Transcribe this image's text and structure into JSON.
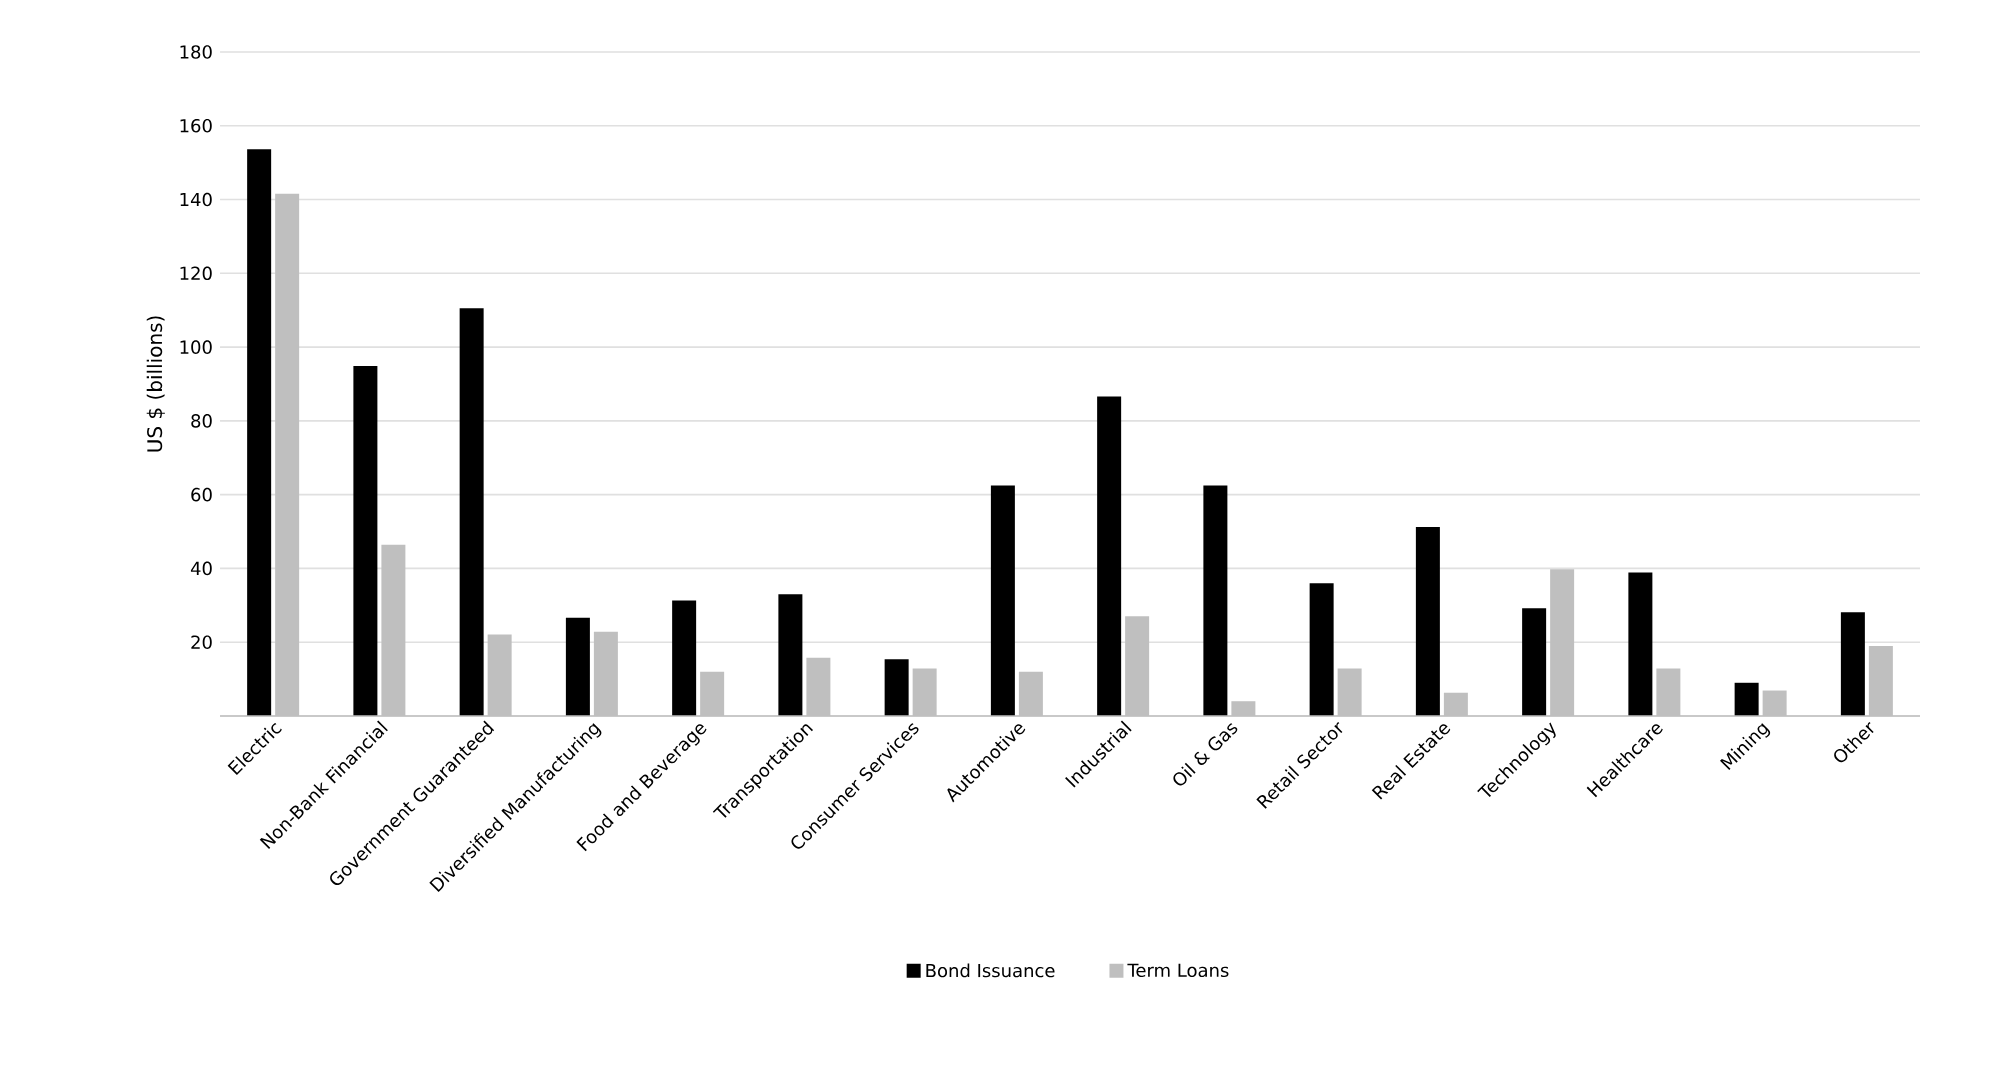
{
  "chart_data": {
    "type": "bar",
    "ylabel": "US $  (billions)",
    "categories": [
      "Electric",
      "Non-Bank Financial",
      "Government Guaranteed",
      "Diversified Manufacturing",
      "Food and Beverage",
      "Transportation",
      "Consumer Services",
      "Automotive",
      "Industrial",
      "Oil & Gas",
      "Retail Sector",
      "Real Estate",
      "Technology",
      "Healthcare",
      "Mining",
      "Other"
    ],
    "series": [
      {
        "name": "Bond Issuance",
        "color": "#000000",
        "values": [
          153.6,
          94.9,
          110.5,
          26.6,
          31.3,
          33,
          15.4,
          62.5,
          86.6,
          62.5,
          36,
          51.2,
          29.2,
          38.9,
          9,
          28.1
        ]
      },
      {
        "name": "Term Loans",
        "color": "#bfbfbf",
        "values": [
          141.6,
          46.4,
          22.1,
          22.8,
          12,
          15.8,
          12.9,
          12,
          27,
          4,
          12.9,
          6.3,
          39.8,
          12.9,
          6.9,
          19
        ]
      }
    ],
    "ylim": [
      0,
      180
    ],
    "yticks": [
      {
        "value": 0,
        "label": null
      },
      20,
      40,
      60,
      80,
      100,
      120,
      140,
      160,
      180
    ],
    "grid": "y",
    "legend": "bottom"
  }
}
